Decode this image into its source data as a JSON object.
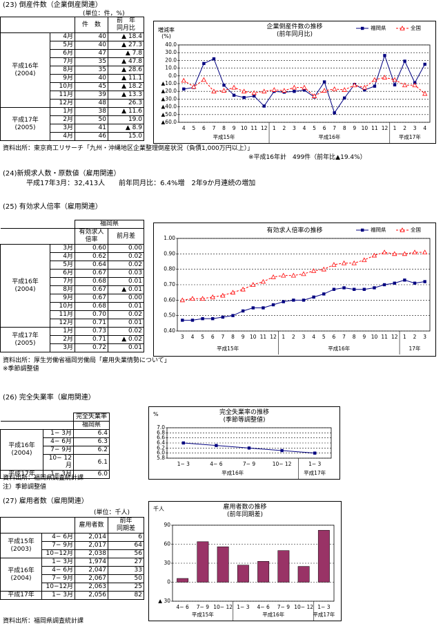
{
  "sec23": {
    "title": "(23) 倒産件数（企業倒産関連）",
    "unit": "(単位：件，%)",
    "table": {
      "headers": [
        "件　数",
        "前　年\n同月比"
      ],
      "groups": [
        {
          "label": "平成16年\n(2004)",
          "rows": [
            [
              "4月",
              "40",
              "▲ 18.4"
            ],
            [
              "5月",
              "40",
              "▲ 27.3"
            ],
            [
              "6月",
              "47",
              "▲ 7.8"
            ],
            [
              "7月",
              "35",
              "▲ 47.8"
            ],
            [
              "8月",
              "35",
              "▲ 28.6"
            ],
            [
              "9月",
              "40",
              "▲ 11.1"
            ],
            [
              "10月",
              "45",
              "▲ 18.2"
            ],
            [
              "11月",
              "39",
              "▲ 13.3"
            ],
            [
              "12月",
              "48",
              "26.3"
            ]
          ]
        },
        {
          "label": "平成17年\n(2005)",
          "rows": [
            [
              "1月",
              "38",
              "▲ 11.6"
            ],
            [
              "2月",
              "50",
              "19.0"
            ],
            [
              "3月",
              "41",
              "▲ 8.9"
            ],
            [
              "4月",
              "46",
              "15.0"
            ]
          ]
        }
      ]
    },
    "source": "資料出所：東京商工リサーチ「九州・沖縄地区企業整理倒産状況（負債1,000万円以上）」",
    "note": "※平成16年計　499件（前年比▲19.4%）"
  },
  "sec24": {
    "title": "(24)新規求人数・原数値（雇用関連）",
    "text": "平成17年3月：32,413人　　前年同月比：6.4%増　2年9か月連続の増加"
  },
  "sec25": {
    "title": "(25) 有効求人倍率（雇用関連）",
    "table": {
      "header_top": "福岡県",
      "headers": [
        "有効求人\n倍率",
        "前月差"
      ],
      "groups": [
        {
          "label": "平成16年\n(2004)",
          "rows": [
            [
              "3月",
              "0.60",
              "0.00"
            ],
            [
              "4月",
              "0.62",
              "0.02"
            ],
            [
              "5月",
              "0.64",
              "0.02"
            ],
            [
              "6月",
              "0.67",
              "0.03"
            ],
            [
              "7月",
              "0.68",
              "0.01"
            ],
            [
              "8月",
              "0.67",
              "▲ 0.01"
            ],
            [
              "9月",
              "0.67",
              "0.00"
            ],
            [
              "10月",
              "0.68",
              "0.01"
            ],
            [
              "11月",
              "0.70",
              "0.02"
            ],
            [
              "12月",
              "0.71",
              "0.01"
            ]
          ]
        },
        {
          "label": "平成17年\n(2005)",
          "rows": [
            [
              "1月",
              "0.73",
              "0.02"
            ],
            [
              "2月",
              "0.71",
              "▲ 0.02"
            ],
            [
              "3月",
              "0.72",
              "0.01"
            ]
          ]
        }
      ]
    },
    "source": "資料出所：厚生労働省福岡労働局「雇用失業情勢について」",
    "note": "※季節調整値"
  },
  "sec26": {
    "title": "(26) 完全失業率（雇用関連）",
    "table": {
      "header_top": "完全失業率",
      "headers": [
        "福岡県"
      ],
      "groups": [
        {
          "label": "平成16年\n(2004)",
          "rows": [
            [
              "1− 3月",
              "6.4"
            ],
            [
              "4− 6月",
              "6.3"
            ],
            [
              "7− 9月",
              "6.2"
            ],
            [
              "10− 12月",
              "6.1"
            ]
          ]
        },
        {
          "label": "平成17年",
          "rows": [
            [
              "1− 3月",
              "6.0"
            ]
          ]
        }
      ]
    },
    "source": "資料出所：福岡県調査統計課",
    "note": "注）季節調整値"
  },
  "sec27": {
    "title": "(27) 雇用者数（雇用関連）",
    "unit": "(単位：千人)",
    "table": {
      "headers": [
        "雇用者数",
        "前年\n同期差"
      ],
      "groups": [
        {
          "label": "平成15年\n(2003)",
          "rows": [
            [
              "4− 6月",
              "2,014",
              "6"
            ],
            [
              "7− 9月",
              "2,017",
              "64"
            ],
            [
              "10−12月",
              "2,038",
              "56"
            ]
          ]
        },
        {
          "label": "平成16年\n(2004)",
          "rows": [
            [
              "1− 3月",
              "1,974",
              "27"
            ],
            [
              "4− 6月",
              "2,047",
              "33"
            ],
            [
              "7− 9月",
              "2,067",
              "50"
            ],
            [
              "10−12月",
              "2,063",
              "25"
            ]
          ]
        },
        {
          "label": "平成17年",
          "rows": [
            [
              "1− 3月",
              "2,056",
              "82"
            ]
          ]
        }
      ]
    },
    "source": "資料出所：福岡県調査統計課"
  },
  "chart_data": [
    {
      "type": "line",
      "title": "企業倒産件数の推移\n(前年同月比)",
      "y_label": "増減率\n(%)",
      "categories": [
        "4",
        "5",
        "6",
        "7",
        "8",
        "9",
        "10",
        "11",
        "12",
        "1",
        "2",
        "3",
        "4",
        "5",
        "6",
        "7",
        "8",
        "9",
        "10",
        "11",
        "12",
        "1",
        "2",
        "3",
        "4"
      ],
      "x_groups": [
        "平成15年",
        "平成16年",
        "平成17年"
      ],
      "series": [
        {
          "name": "福岡県",
          "color": "#000080",
          "marker": "square",
          "dashed": false,
          "values": [
            -17,
            -15,
            16,
            22,
            -12,
            -25,
            -28,
            -26,
            -39,
            -20,
            -21,
            -20,
            -18.4,
            -27.3,
            -7.8,
            -47.8,
            -28.6,
            -11.1,
            -18.2,
            -13.3,
            26.3,
            -11.6,
            19.0,
            -8.9,
            15.0
          ]
        },
        {
          "name": "全国",
          "color": "#ff0000",
          "marker": "triangle",
          "dashed": true,
          "values": [
            -6,
            -14,
            -5,
            -20,
            -19,
            -15,
            -20,
            -22,
            -20,
            -18,
            -19,
            -15,
            -15,
            -26,
            -19,
            -17,
            -18,
            -12,
            -15,
            -5,
            -2,
            -5,
            -12,
            -12,
            -23
          ]
        }
      ],
      "ylim": [
        -60,
        40
      ],
      "yticks": [
        {
          "value": 40,
          "label": "40.0"
        },
        {
          "value": 30,
          "label": "30.0"
        },
        {
          "value": 20,
          "label": "20.0"
        },
        {
          "value": 10,
          "label": "10.0"
        },
        {
          "value": 0,
          "label": "0.0"
        },
        {
          "value": -10,
          "label": "▲10.0"
        },
        {
          "value": -20,
          "label": "▲20.0"
        },
        {
          "value": -30,
          "label": "▲30.0"
        },
        {
          "value": -40,
          "label": "▲40.0"
        },
        {
          "value": -50,
          "label": "▲50.0"
        },
        {
          "value": -60,
          "label": "▲60.0"
        }
      ],
      "grid": true,
      "legend": "top-right"
    },
    {
      "type": "line",
      "title": "有効求人倍率の推移",
      "categories": [
        "3",
        "4",
        "5",
        "6",
        "7",
        "8",
        "9",
        "10",
        "11",
        "12",
        "1",
        "2",
        "3",
        "4",
        "5",
        "6",
        "7",
        "8",
        "9",
        "10",
        "11",
        "12",
        "1",
        "2",
        "3"
      ],
      "x_groups": [
        "平成15年",
        "平成16年",
        "17年"
      ],
      "series": [
        {
          "name": "福岡県",
          "color": "#000080",
          "marker": "square",
          "dashed": false,
          "values": [
            0.47,
            0.47,
            0.48,
            0.48,
            0.49,
            0.5,
            0.53,
            0.55,
            0.55,
            0.57,
            0.59,
            0.6,
            0.6,
            0.62,
            0.64,
            0.67,
            0.68,
            0.67,
            0.67,
            0.68,
            0.7,
            0.71,
            0.73,
            0.71,
            0.72
          ]
        },
        {
          "name": "全国",
          "color": "#ff0000",
          "marker": "triangle",
          "dashed": true,
          "values": [
            0.6,
            0.61,
            0.61,
            0.62,
            0.63,
            0.65,
            0.67,
            0.7,
            0.72,
            0.75,
            0.76,
            0.76,
            0.77,
            0.79,
            0.8,
            0.83,
            0.84,
            0.84,
            0.86,
            0.89,
            0.91,
            0.9,
            0.9,
            0.91,
            0.91
          ]
        }
      ],
      "ylim": [
        0.4,
        1.0
      ],
      "yticks": [
        {
          "value": 0.4,
          "label": "0.40"
        },
        {
          "value": 0.5,
          "label": "0.50"
        },
        {
          "value": 0.6,
          "label": "0.60"
        },
        {
          "value": 0.7,
          "label": "0.70"
        },
        {
          "value": 0.8,
          "label": "0.80"
        },
        {
          "value": 0.9,
          "label": "0.90"
        },
        {
          "value": 1,
          "label": "1.00"
        }
      ],
      "grid": true,
      "legend": "top-right"
    },
    {
      "type": "line",
      "title": "完全失業率の推移\n(季節等調整値)",
      "y_label": "%",
      "categories": [
        "1− 3",
        "4− 6",
        "7− 9",
        "10− 12",
        "1− 3"
      ],
      "x_groups": [
        "平成16年",
        "平成17年"
      ],
      "series": [
        {
          "color": "#000080",
          "marker": "square",
          "dashed": false,
          "values": [
            6.4,
            6.3,
            6.2,
            6.1,
            6.0
          ]
        }
      ],
      "ylim": [
        5.8,
        7.0
      ],
      "yticks": [
        5.8,
        {
          "value": 6,
          "label": "6.0"
        },
        6.2,
        6.4,
        6.6,
        6.8,
        {
          "value": 7,
          "label": "7.0"
        }
      ],
      "grid": true
    },
    {
      "type": "bar",
      "title": "雇用者数の推移\n(前年同期差)",
      "y_label": "千人",
      "color": "#993366",
      "categories": [
        "4− 6",
        "7− 9",
        "10− 12",
        "1− 3",
        "4− 6",
        "7− 9",
        "10− 12",
        "1− 3"
      ],
      "x_groups": [
        "平成15年",
        "平成16年",
        "平成17年"
      ],
      "values": [
        6,
        64,
        56,
        27,
        33,
        50,
        25,
        82
      ],
      "ylim": [
        -30,
        90
      ],
      "yticks": [
        90,
        60,
        30,
        0,
        {
          "value": -30,
          "label": "▲ 30"
        }
      ],
      "grid": true
    }
  ]
}
